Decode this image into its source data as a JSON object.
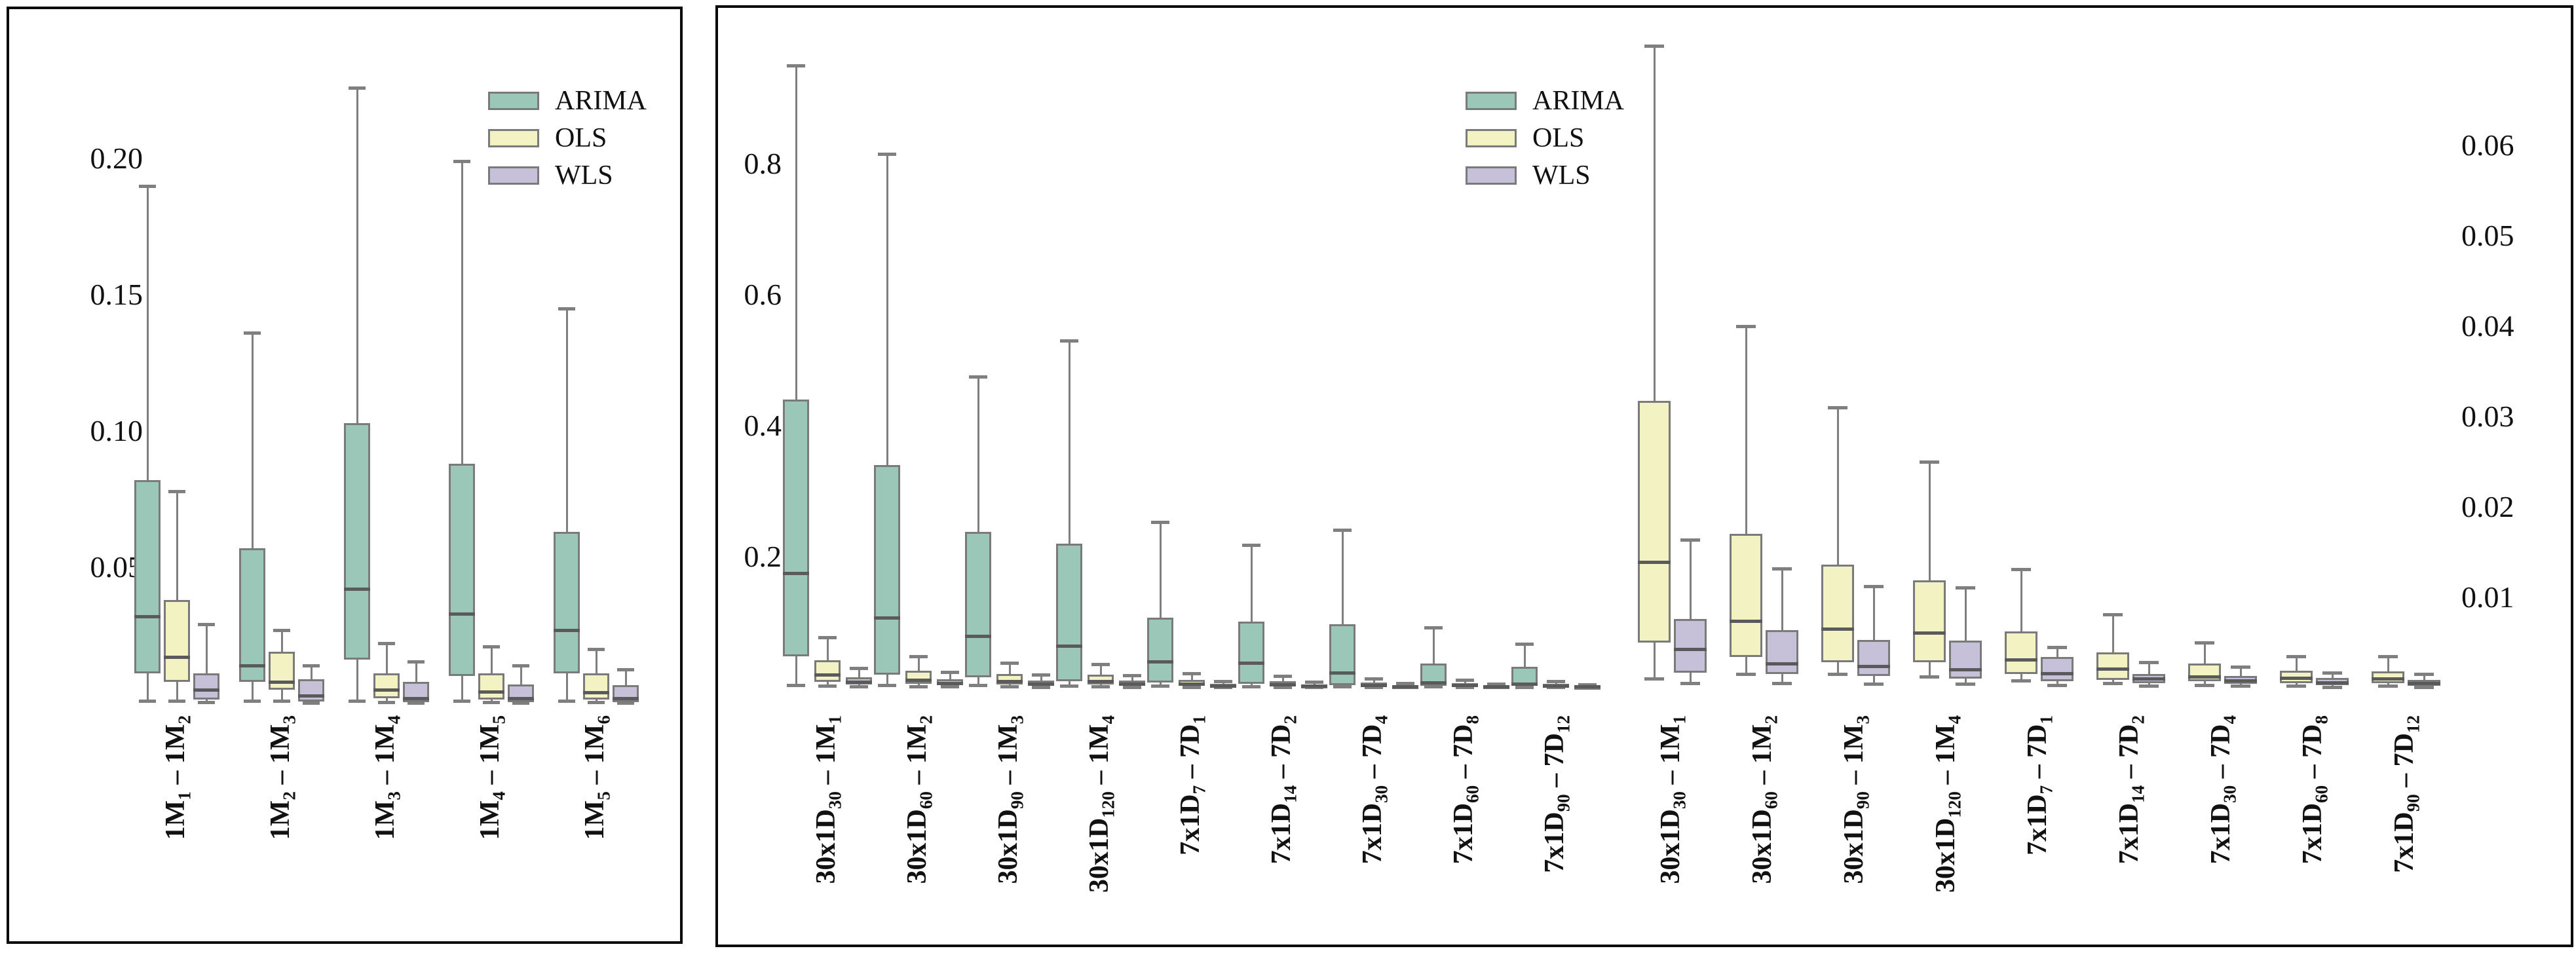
{
  "figure": {
    "description": "Grouped box-and-whisker comparison of ARIMA, OLS and WLS forecast errors"
  },
  "legend": {
    "items": [
      {
        "label": "ARIMA",
        "color": "#9ac7b7"
      },
      {
        "label": "OLS",
        "color": "#f2f2c2"
      },
      {
        "label": "WLS",
        "color": "#c6c0d8"
      }
    ]
  },
  "styles": {
    "box_edge": "#7a7a7a",
    "whisker": "#7f7f7f",
    "median": "#5a5a5a",
    "panel_border": "#0a0a0a",
    "background": "#ffffff"
  },
  "chart_data": [
    {
      "id": "left",
      "type": "box",
      "title": "",
      "grid": false,
      "legend_position": "top-right",
      "categories": [
        "1M_{1} – 1M_{2}",
        "1M_{2} – 1M_{3}",
        "1M_{3} – 1M_{4}",
        "1M_{4} – 1M_{5}",
        "1M_{5} – 1M_{6}"
      ],
      "y_axis": {
        "side": "left",
        "ticks": [
          "0.05",
          "0.10",
          "0.15",
          "0.20"
        ],
        "tick_values": [
          0.05,
          0.1,
          0.15,
          0.2
        ],
        "ylim": [
          0,
          0.2486
        ]
      },
      "stat_order": [
        "whisker_low",
        "q1",
        "median",
        "q3",
        "whisker_high"
      ],
      "clusters": [
        {
          "axis": "left",
          "series": [
            {
              "name": "ARIMA",
              "stats": [
                [
                  0.001,
                  0.011,
                  0.032,
                  0.082,
                  0.19
                ],
                [
                  0.001,
                  0.008,
                  0.014,
                  0.057,
                  0.136
                ],
                [
                  0.001,
                  0.016,
                  0.042,
                  0.103,
                  0.226
                ],
                [
                  0.001,
                  0.01,
                  0.033,
                  0.088,
                  0.199
                ],
                [
                  0.001,
                  0.011,
                  0.027,
                  0.063,
                  0.145
                ]
              ]
            },
            {
              "name": "OLS",
              "stats": [
                [
                  0.001,
                  0.008,
                  0.017,
                  0.038,
                  0.078
                ],
                [
                  0.001,
                  0.005,
                  0.008,
                  0.019,
                  0.027
                ],
                [
                  0.0005,
                  0.002,
                  0.005,
                  0.011,
                  0.022
                ],
                [
                  0.0005,
                  0.0015,
                  0.0044,
                  0.011,
                  0.021
                ],
                [
                  0.0005,
                  0.0015,
                  0.004,
                  0.011,
                  0.02
                ]
              ]
            },
            {
              "name": "WLS",
              "stats": [
                [
                  0.0005,
                  0.0015,
                  0.005,
                  0.011,
                  0.029
                ],
                [
                  0.0003,
                  0.0007,
                  0.003,
                  0.009,
                  0.014
                ],
                [
                  0.0002,
                  0.0004,
                  0.002,
                  0.008,
                  0.0155
                ],
                [
                  0.0002,
                  0.0004,
                  0.002,
                  0.007,
                  0.014
                ],
                [
                  0.0002,
                  0.0004,
                  0.002,
                  0.0067,
                  0.0126
                ]
              ]
            }
          ]
        }
      ]
    },
    {
      "id": "right",
      "type": "box",
      "title": "",
      "grid": false,
      "dual_axis": true,
      "legend_position": "top-center",
      "categories": [
        "30x1D_{30} – 1M_{1}",
        "30x1D_{60} – 1M_{2}",
        "30x1D_{90} – 1M_{3}",
        "30x1D_{120} – 1M_{4}",
        "7x1D_{7} – 7D_{1}",
        "7x1D_{14} – 7D_{2}",
        "7x1D_{30} – 7D_{4}",
        "7x1D_{60} – 7D_{8}",
        "7x1D_{90} – 7D_{12}"
      ],
      "left_axis": {
        "ticks": [
          "0.2",
          "0.4",
          "0.6",
          "0.8"
        ],
        "tick_values": [
          0.2,
          0.4,
          0.6,
          0.8
        ],
        "ylim": [
          0,
          1.02
        ]
      },
      "right_axis": {
        "ticks": [
          "0.01",
          "0.02",
          "0.03",
          "0.04",
          "0.05",
          "0.06"
        ],
        "tick_values": [
          0.01,
          0.02,
          0.03,
          0.04,
          0.05,
          0.06
        ],
        "ylim": [
          0,
          0.0739
        ]
      },
      "stat_order": [
        "whisker_low",
        "q1",
        "median",
        "q3",
        "whisker_high"
      ],
      "clusters": [
        {
          "axis": "left",
          "series": [
            {
              "name": "ARIMA",
              "stats": [
                [
                  0.004,
                  0.048,
                  0.175,
                  0.44,
                  0.95
                ],
                [
                  0.004,
                  0.02,
                  0.107,
                  0.34,
                  0.815
                ],
                [
                  0.004,
                  0.016,
                  0.079,
                  0.238,
                  0.475
                ],
                [
                  0.003,
                  0.01,
                  0.064,
                  0.22,
                  0.53
                ],
                [
                  0.003,
                  0.008,
                  0.04,
                  0.107,
                  0.253
                ],
                [
                  0.002,
                  0.006,
                  0.038,
                  0.101,
                  0.218
                ],
                [
                  0.002,
                  0.004,
                  0.023,
                  0.097,
                  0.241
                ],
                [
                  0.002,
                  0.003,
                  0.008,
                  0.037,
                  0.092
                ],
                [
                  0.001,
                  0.003,
                  0.006,
                  0.032,
                  0.067
                ]
              ]
            },
            {
              "name": "OLS",
              "stats": [
                [
                  0.003,
                  0.009,
                  0.02,
                  0.042,
                  0.077
                ],
                [
                  0.002,
                  0.006,
                  0.012,
                  0.026,
                  0.048
                ],
                [
                  0.002,
                  0.005,
                  0.01,
                  0.021,
                  0.038
                ],
                [
                  0.002,
                  0.005,
                  0.01,
                  0.02,
                  0.036
                ],
                [
                  0.001,
                  0.003,
                  0.006,
                  0.012,
                  0.022
                ],
                [
                  0.001,
                  0.003,
                  0.005,
                  0.01,
                  0.018
                ],
                [
                  0.001,
                  0.002,
                  0.004,
                  0.008,
                  0.014
                ],
                [
                  0.001,
                  0.002,
                  0.004,
                  0.007,
                  0.012
                ],
                [
                  0.001,
                  0.002,
                  0.003,
                  0.006,
                  0.01
                ]
              ]
            },
            {
              "name": "WLS",
              "stats": [
                [
                  0.002,
                  0.005,
                  0.009,
                  0.016,
                  0.03
                ],
                [
                  0.002,
                  0.004,
                  0.007,
                  0.013,
                  0.024
                ],
                [
                  0.001,
                  0.003,
                  0.006,
                  0.011,
                  0.02
                ],
                [
                  0.001,
                  0.003,
                  0.006,
                  0.011,
                  0.019
                ],
                [
                  0.001,
                  0.002,
                  0.003,
                  0.006,
                  0.01
                ],
                [
                  0.001,
                  0.002,
                  0.003,
                  0.005,
                  0.009
                ],
                [
                  0.001,
                  0.001,
                  0.002,
                  0.004,
                  0.007
                ],
                [
                  0.001,
                  0.001,
                  0.002,
                  0.004,
                  0.006
                ],
                [
                  0.0005,
                  0.001,
                  0.002,
                  0.003,
                  0.005
                ]
              ]
            }
          ]
        },
        {
          "axis": "right",
          "series": [
            {
              "name": "OLS",
              "stats": [
                [
                  0.001,
                  0.005,
                  0.0139,
                  0.0317,
                  0.071
                ],
                [
                  0.0015,
                  0.0034,
                  0.0074,
                  0.017,
                  0.04
                ],
                [
                  0.0015,
                  0.0028,
                  0.0065,
                  0.0136,
                  0.031
                ],
                [
                  0.0012,
                  0.0028,
                  0.0061,
                  0.0119,
                  0.025
                ],
                [
                  0.0008,
                  0.0015,
                  0.0031,
                  0.0062,
                  0.0131
                ],
                [
                  0.0005,
                  0.0009,
                  0.0021,
                  0.0039,
                  0.0081
                ],
                [
                  0.0003,
                  0.0007,
                  0.0012,
                  0.0027,
                  0.005
                ],
                [
                  0.0002,
                  0.0005,
                  0.0011,
                  0.0019,
                  0.0035
                ],
                [
                  0.0002,
                  0.0005,
                  0.001,
                  0.0018,
                  0.0035
                ]
              ]
            },
            {
              "name": "WLS",
              "stats": [
                [
                  0.0005,
                  0.0017,
                  0.0043,
                  0.0076,
                  0.0164
                ],
                [
                  0.0005,
                  0.0015,
                  0.0027,
                  0.0064,
                  0.0132
                ],
                [
                  0.0004,
                  0.0013,
                  0.0024,
                  0.0053,
                  0.0112
                ],
                [
                  0.0004,
                  0.001,
                  0.002,
                  0.0052,
                  0.0111
                ],
                [
                  0.0003,
                  0.0007,
                  0.0016,
                  0.0034,
                  0.0045
                ],
                [
                  0.0002,
                  0.0005,
                  0.001,
                  0.0015,
                  0.0028
                ],
                [
                  0.0002,
                  0.0004,
                  0.0008,
                  0.0013,
                  0.0023
                ],
                [
                  0.0001,
                  0.0003,
                  0.0006,
                  0.0011,
                  0.0017
                ],
                [
                  0.0001,
                  0.0002,
                  0.0005,
                  0.0009,
                  0.0015
                ]
              ]
            }
          ]
        }
      ]
    }
  ]
}
